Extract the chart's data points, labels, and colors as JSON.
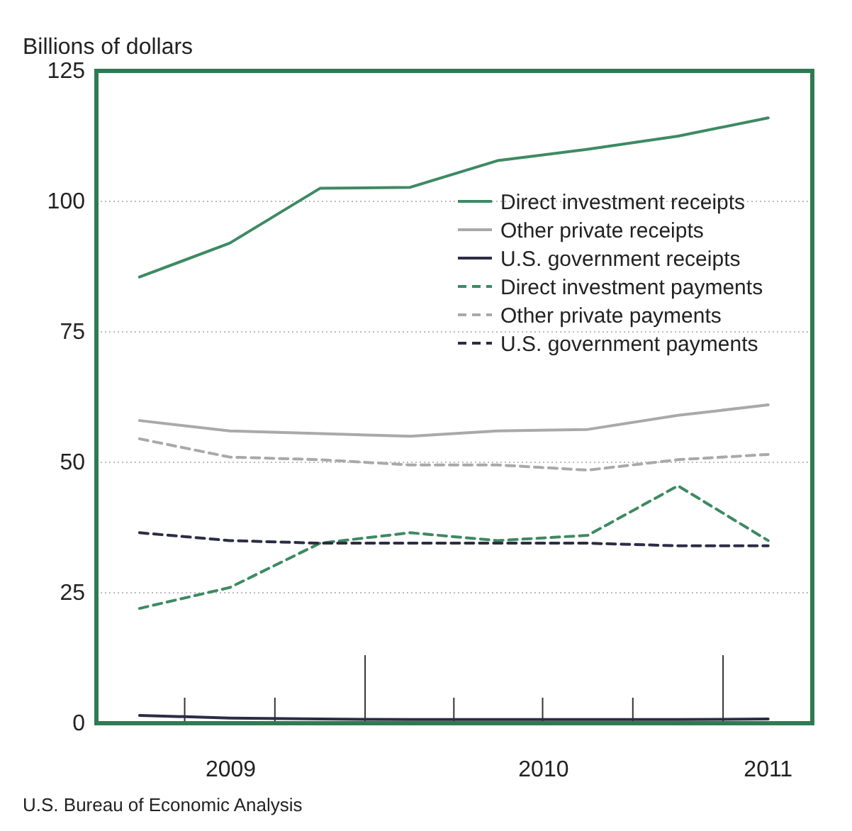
{
  "chart_data": {
    "type": "line",
    "ylabel": "Billions of dollars",
    "annotations": [
      "U.S. Bureau of Economic Analysis"
    ],
    "x": [
      "2009-05-15",
      "2009-08-15",
      "2009-11-15",
      "2010-02-15",
      "2010-05-15",
      "2010-08-15",
      "2010-11-15",
      "2011-02-15"
    ],
    "xlim": [
      "2009-04-01",
      "2011-04-01"
    ],
    "xticks": [
      {
        "value": "2009-08-16",
        "label": "2009"
      },
      {
        "value": "2010-07-01",
        "label": "2010"
      },
      {
        "value": "2011-02-15",
        "label": "2011"
      }
    ],
    "ylim": [
      0,
      125
    ],
    "yticks": [
      0,
      25,
      50,
      75,
      100,
      125
    ],
    "grid": "y",
    "legend": "top right",
    "marker": "none",
    "series": [
      {
        "name": "Direct investment receipts",
        "color": "#3d8a62",
        "line_style": "solid",
        "values": [
          85.5,
          92,
          102.5,
          102.7,
          107.8,
          110,
          112.5,
          116
        ]
      },
      {
        "name": "Other private receipts",
        "color": "#a9a9a9",
        "line_style": "solid",
        "values": [
          58,
          56,
          55.5,
          55,
          56,
          56.3,
          59,
          61
        ]
      },
      {
        "name": "U.S. government receipts",
        "color": "#2c2c44",
        "line_style": "solid",
        "values": [
          1.5,
          1,
          0.8,
          0.7,
          0.7,
          0.7,
          0.7,
          0.8
        ]
      },
      {
        "name": "Direct investment payments",
        "color": "#3d8a62",
        "line_style": "dashed",
        "values": [
          22,
          26,
          34.5,
          36.5,
          35,
          36,
          45.5,
          35
        ]
      },
      {
        "name": "Other private payments",
        "color": "#a9a9a9",
        "line_style": "dashed",
        "values": [
          54.5,
          51,
          50.5,
          49.5,
          49.5,
          48.5,
          50.5,
          51.5
        ]
      },
      {
        "name": "U.S. government payments",
        "color": "#2c2c44",
        "line_style": "dashed",
        "values": [
          36.5,
          35,
          34.5,
          34.5,
          34.5,
          34.5,
          34,
          34
        ]
      }
    ]
  }
}
